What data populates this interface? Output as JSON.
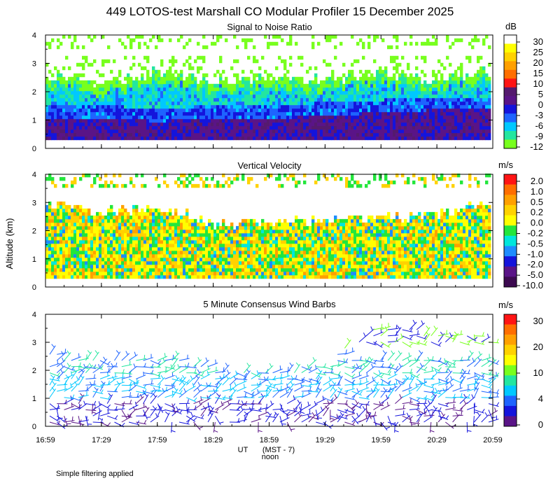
{
  "title": "449 LOTOS-test Marshall CO Modular Profiler 15 December 2025",
  "ylabel": "Altitude (km)",
  "xlabel_main": "UT",
  "xlabel_sub": "(MST - 7)",
  "xlabel_noon": "noon",
  "footnote": "Simple filtering applied",
  "x_ticks": [
    "16:59",
    "17:29",
    "17:59",
    "18:29",
    "18:59",
    "19:29",
    "19:59",
    "20:29",
    "20:59"
  ],
  "y_ticks": [
    "0",
    "1",
    "2",
    "3",
    "4"
  ],
  "chart_data": [
    {
      "type": "heatmap",
      "title": "Signal to Noise Ratio",
      "unit": "dB",
      "x_range": [
        "16:59",
        "20:59"
      ],
      "y_range_km": [
        0,
        4
      ],
      "colorbar_labels": [
        "30",
        "25",
        "20",
        "15",
        "10",
        "5",
        "0",
        "-3",
        "-6",
        "-9",
        "-12"
      ],
      "colors": [
        "#ffffff",
        "#ffff00",
        "#ffd200",
        "#ffa000",
        "#ff6e00",
        "#ff1414",
        "#551a6e",
        "#5a1487",
        "#1414dc",
        "#1e64ff",
        "#00c8ff",
        "#23e6a0",
        "#78ff1e"
      ],
      "profile": {
        "x": [
          "16:59",
          "17:29",
          "17:59",
          "18:29",
          "18:59",
          "19:29",
          "19:59",
          "20:29",
          "20:59"
        ],
        "echo_top_km": [
          2.2,
          1.9,
          2.3,
          2.0,
          2.1,
          2.0,
          2.2,
          2.0,
          2.3
        ],
        "zero_db_top_km": [
          1.0,
          1.0,
          0.9,
          1.0,
          1.0,
          1.1,
          1.2,
          1.3,
          1.3
        ]
      }
    },
    {
      "type": "heatmap",
      "title": "Vertical Velocity",
      "unit": "m/s",
      "x_range": [
        "16:59",
        "20:59"
      ],
      "y_range_km": [
        0,
        4
      ],
      "colorbar_labels": [
        "2.0",
        "1.0",
        "0.5",
        "0.2",
        "0.0",
        "-0.2",
        "-0.5",
        "-1.0",
        "-2.0",
        "-5.0",
        "-10.0"
      ],
      "colors": [
        "#ff1414",
        "#ff6e00",
        "#ffa000",
        "#ffd200",
        "#ffff00",
        "#23e63c",
        "#00e6dc",
        "#1e8cff",
        "#1414dc",
        "#5a1487",
        "#3c0a50"
      ],
      "profile": {
        "x": [
          "16:59",
          "17:29",
          "17:59",
          "18:29",
          "18:59",
          "19:29",
          "19:59",
          "20:29",
          "20:59"
        ],
        "data_top_km": [
          2.9,
          2.6,
          2.8,
          2.2,
          2.2,
          2.3,
          2.4,
          2.5,
          2.9
        ]
      }
    },
    {
      "type": "scatter",
      "title": "5 Minute Consensus Wind Barbs",
      "unit": "m/s",
      "x_range": [
        "16:59",
        "20:59"
      ],
      "y_range_km": [
        0,
        4
      ],
      "colorbar_labels": [
        "30",
        "20",
        "10",
        "4",
        "0"
      ],
      "colors": [
        "#ff1414",
        "#ff6e00",
        "#ffa000",
        "#ffd200",
        "#ffff00",
        "#78ff1e",
        "#23e6a0",
        "#00c8ff",
        "#1e64ff",
        "#1414dc",
        "#5a1487"
      ],
      "profile": {
        "x": [
          "16:59",
          "17:29",
          "17:59",
          "18:29",
          "18:59",
          "19:29",
          "19:59",
          "20:29",
          "20:59"
        ],
        "top_km": [
          2.6,
          2.4,
          2.5,
          2.1,
          2.0,
          2.3,
          3.6,
          3.4,
          3.2
        ]
      }
    }
  ]
}
